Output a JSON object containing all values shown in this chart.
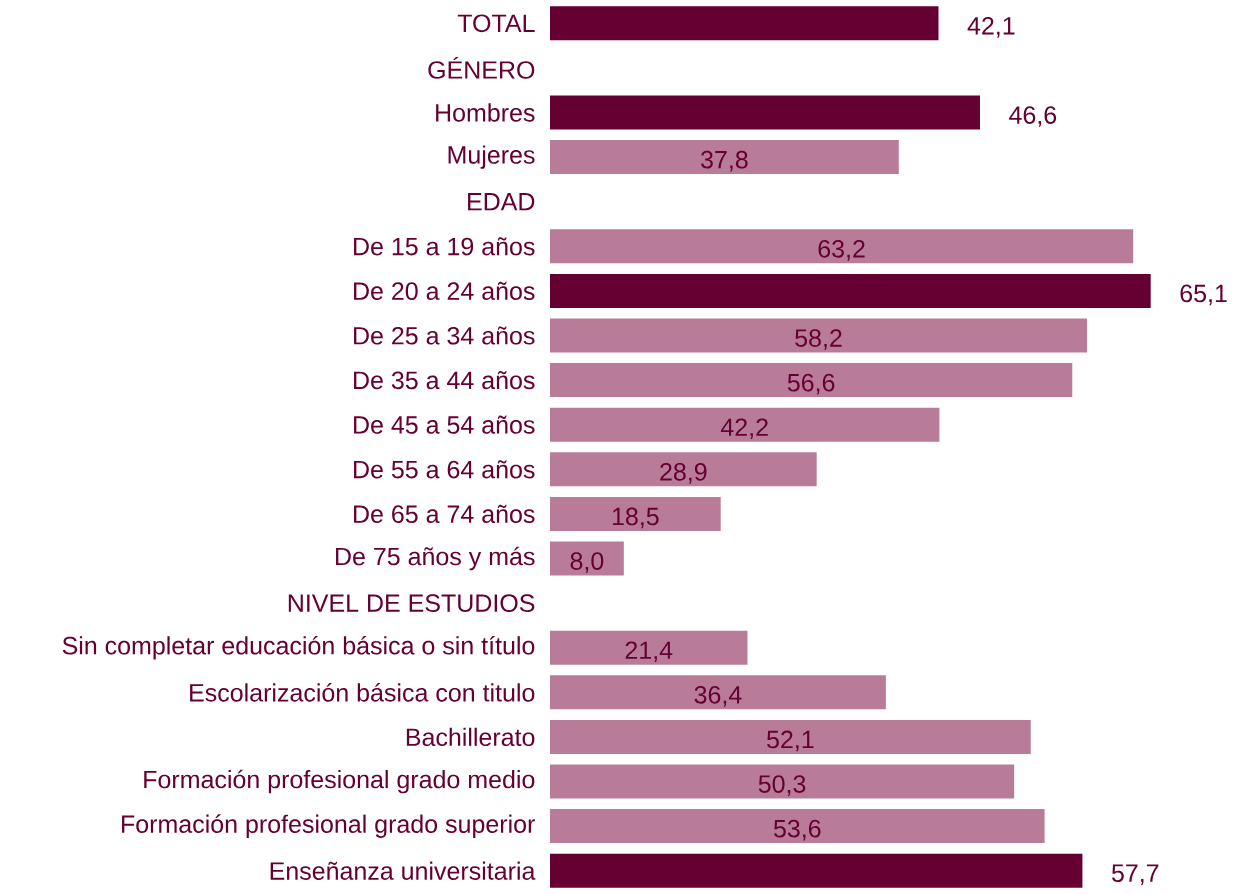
{
  "chart_data": {
    "type": "bar",
    "orientation": "horizontal",
    "categories": [
      "TOTAL",
      "GÉNERO",
      "Hombres",
      "Mujeres",
      "EDAD",
      "De 15 a 19 años",
      "De 20 a 24 años",
      "De 25 a 34 años",
      "De 35 a 44 años",
      "De 45 a 54 años",
      "De 55 a 64 años",
      "De 65 a 74 años",
      "De 75 años y más",
      "NIVEL DE ESTUDIOS",
      "Sin completar educación básica o sin título",
      "Escolarización básica con titulo",
      "Bachillerato",
      "Formación profesional grado medio",
      "Formación profesional grado superior",
      "Enseñanza universitaria"
    ],
    "values": [
      42.1,
      null,
      46.6,
      37.8,
      null,
      63.2,
      65.1,
      58.2,
      56.6,
      42.2,
      28.9,
      18.5,
      8.0,
      null,
      21.4,
      36.4,
      52.1,
      50.3,
      53.6,
      57.7
    ],
    "value_labels": [
      "42,1",
      null,
      "46,6",
      "37,8",
      null,
      "63,2",
      "65,1",
      "58,2",
      "56,6",
      "42,2",
      "28,9",
      "18,5",
      "8,0",
      null,
      "21,4",
      "36,4",
      "52,1",
      "50,3",
      "53,6",
      "57,7"
    ],
    "colors": [
      "#660033",
      null,
      "#660033",
      "#b87c99",
      null,
      "#b87c99",
      "#660033",
      "#b87c99",
      "#b87c99",
      "#b87c99",
      "#b87c99",
      "#b87c99",
      "#b87c99",
      null,
      "#b87c99",
      "#b87c99",
      "#b87c99",
      "#b87c99",
      "#b87c99",
      "#660033"
    ],
    "stacked": false
  }
}
